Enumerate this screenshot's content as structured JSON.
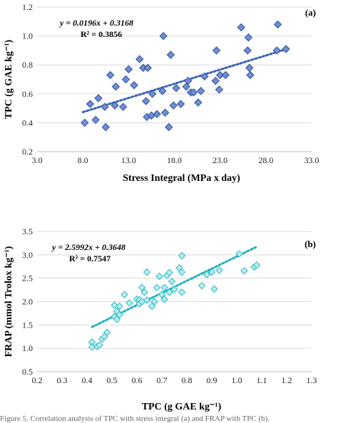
{
  "colors": {
    "a_marker_fill": "#6f8fd0",
    "a_marker_stroke": "#2f4f9f",
    "a_trend": "#3a64b8",
    "b_marker_fill": "#b8eef0",
    "b_marker_stroke": "#2bb9c4",
    "b_trend": "#20b2bd",
    "gridline": "#d9d9d9"
  },
  "caption": "Figure 5. Correlation analysis of TPC with stress integral (a) and FRAP with TPC (b).",
  "chart_data": [
    {
      "type": "scatter",
      "panel_label": "(a)",
      "title": "",
      "xlabel": "Stress Integral (MPa x day)",
      "ylabel": "TPC (g GAE kg⁻¹)",
      "xlim": [
        3.0,
        33.0
      ],
      "ylim": [
        0.2,
        1.2
      ],
      "xticks": [
        "3.0",
        "8.0",
        "13.0",
        "18.0",
        "23.0",
        "28.0",
        "33.0"
      ],
      "yticks": [
        "0.2",
        "0.4",
        "0.6",
        "0.8",
        "1.0",
        "1.2"
      ],
      "grid": "horizontal",
      "marker": "diamond",
      "equation": "y = 0.0196x + 0.3168",
      "r2": "R² = 0.3856",
      "trendline": {
        "slope": 0.0196,
        "intercept": 0.3168,
        "x_range": [
          8.0,
          30.0
        ],
        "style": "dotted"
      },
      "points": [
        {
          "x": 8.2,
          "y": 0.4
        },
        {
          "x": 8.8,
          "y": 0.53
        },
        {
          "x": 9.4,
          "y": 0.42
        },
        {
          "x": 9.7,
          "y": 0.57
        },
        {
          "x": 10.5,
          "y": 0.37
        },
        {
          "x": 10.4,
          "y": 0.51
        },
        {
          "x": 11.0,
          "y": 0.73
        },
        {
          "x": 11.5,
          "y": 0.52
        },
        {
          "x": 11.6,
          "y": 0.65
        },
        {
          "x": 12.4,
          "y": 0.51
        },
        {
          "x": 12.7,
          "y": 0.7
        },
        {
          "x": 13.0,
          "y": 0.77
        },
        {
          "x": 13.6,
          "y": 0.66
        },
        {
          "x": 14.2,
          "y": 0.84
        },
        {
          "x": 14.6,
          "y": 0.78
        },
        {
          "x": 14.9,
          "y": 0.55
        },
        {
          "x": 15.1,
          "y": 0.78
        },
        {
          "x": 15.0,
          "y": 0.44
        },
        {
          "x": 15.5,
          "y": 0.45
        },
        {
          "x": 15.6,
          "y": 0.6
        },
        {
          "x": 16.1,
          "y": 0.46
        },
        {
          "x": 16.7,
          "y": 0.62
        },
        {
          "x": 16.8,
          "y": 1.0
        },
        {
          "x": 17.0,
          "y": 0.47
        },
        {
          "x": 17.4,
          "y": 0.37
        },
        {
          "x": 17.6,
          "y": 0.87
        },
        {
          "x": 17.9,
          "y": 0.52
        },
        {
          "x": 18.2,
          "y": 0.64
        },
        {
          "x": 18.7,
          "y": 0.53
        },
        {
          "x": 19.3,
          "y": 0.65
        },
        {
          "x": 19.5,
          "y": 0.69
        },
        {
          "x": 19.8,
          "y": 0.61
        },
        {
          "x": 20.1,
          "y": 0.61
        },
        {
          "x": 20.6,
          "y": 0.54
        },
        {
          "x": 20.9,
          "y": 0.62
        },
        {
          "x": 21.3,
          "y": 0.72
        },
        {
          "x": 22.6,
          "y": 0.9
        },
        {
          "x": 22.5,
          "y": 0.69
        },
        {
          "x": 23.0,
          "y": 0.73
        },
        {
          "x": 22.9,
          "y": 0.63
        },
        {
          "x": 23.6,
          "y": 0.73
        },
        {
          "x": 25.3,
          "y": 1.06
        },
        {
          "x": 26.0,
          "y": 0.9
        },
        {
          "x": 26.1,
          "y": 0.99
        },
        {
          "x": 26.2,
          "y": 0.78
        },
        {
          "x": 26.3,
          "y": 0.73
        },
        {
          "x": 29.3,
          "y": 1.08
        },
        {
          "x": 29.2,
          "y": 0.9
        },
        {
          "x": 30.2,
          "y": 0.91
        }
      ]
    },
    {
      "type": "scatter",
      "panel_label": "(b)",
      "title": "",
      "xlabel": "TPC (g GAE kg⁻¹)",
      "ylabel": "FRAP (mmol Trolox kg⁻¹)",
      "xlim": [
        0.2,
        1.3
      ],
      "ylim": [
        0.5,
        3.5
      ],
      "xticks": [
        "0.2",
        "0.3",
        "0.4",
        "0.5",
        "0.6",
        "0.7",
        "0.8",
        "0.9",
        "1.0",
        "1.1",
        "1.2",
        "1.3"
      ],
      "yticks": [
        "0.5",
        "1.0",
        "1.5",
        "2.0",
        "2.5",
        "3.0",
        "3.5"
      ],
      "grid": "horizontal",
      "marker": "diamond",
      "equation": "y = 2.5992x + 0.3648",
      "r2": "R² = 0.7547",
      "trendline": {
        "slope": 2.5992,
        "intercept": 0.3648,
        "x_range": [
          0.42,
          1.08
        ],
        "style": "dotted"
      },
      "points": [
        {
          "x": 0.42,
          "y": 1.13
        },
        {
          "x": 0.42,
          "y": 1.03
        },
        {
          "x": 0.44,
          "y": 1.04
        },
        {
          "x": 0.45,
          "y": 1.07
        },
        {
          "x": 0.46,
          "y": 1.2
        },
        {
          "x": 0.47,
          "y": 1.25
        },
        {
          "x": 0.48,
          "y": 1.34
        },
        {
          "x": 0.51,
          "y": 1.68
        },
        {
          "x": 0.51,
          "y": 1.92
        },
        {
          "x": 0.52,
          "y": 1.62
        },
        {
          "x": 0.52,
          "y": 1.79
        },
        {
          "x": 0.53,
          "y": 1.72
        },
        {
          "x": 0.53,
          "y": 1.9
        },
        {
          "x": 0.55,
          "y": 2.15
        },
        {
          "x": 0.57,
          "y": 1.97
        },
        {
          "x": 0.6,
          "y": 2.05
        },
        {
          "x": 0.61,
          "y": 2.04
        },
        {
          "x": 0.61,
          "y": 1.95
        },
        {
          "x": 0.62,
          "y": 2.3
        },
        {
          "x": 0.62,
          "y": 2.0
        },
        {
          "x": 0.63,
          "y": 2.2
        },
        {
          "x": 0.64,
          "y": 2.63
        },
        {
          "x": 0.64,
          "y": 2.03
        },
        {
          "x": 0.66,
          "y": 1.9
        },
        {
          "x": 0.67,
          "y": 2.0
        },
        {
          "x": 0.68,
          "y": 2.3
        },
        {
          "x": 0.69,
          "y": 2.54
        },
        {
          "x": 0.7,
          "y": 2.15
        },
        {
          "x": 0.71,
          "y": 2.3
        },
        {
          "x": 0.71,
          "y": 2.05
        },
        {
          "x": 0.72,
          "y": 2.56
        },
        {
          "x": 0.73,
          "y": 2.62
        },
        {
          "x": 0.73,
          "y": 2.2
        },
        {
          "x": 0.74,
          "y": 2.43
        },
        {
          "x": 0.75,
          "y": 2.26
        },
        {
          "x": 0.77,
          "y": 2.72
        },
        {
          "x": 0.78,
          "y": 2.98
        },
        {
          "x": 0.78,
          "y": 2.2
        },
        {
          "x": 0.78,
          "y": 2.63
        },
        {
          "x": 0.86,
          "y": 2.34
        },
        {
          "x": 0.88,
          "y": 2.58
        },
        {
          "x": 0.9,
          "y": 2.63
        },
        {
          "x": 0.91,
          "y": 2.27
        },
        {
          "x": 0.93,
          "y": 2.67
        },
        {
          "x": 1.01,
          "y": 3.02
        },
        {
          "x": 1.03,
          "y": 2.66
        },
        {
          "x": 1.07,
          "y": 2.74
        },
        {
          "x": 1.08,
          "y": 2.78
        }
      ]
    }
  ]
}
